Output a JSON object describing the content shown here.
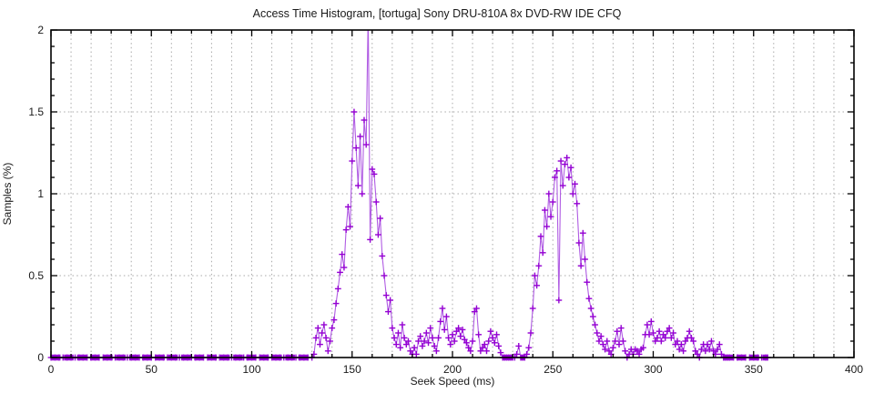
{
  "title": "Access Time Histogram, [tortuga] Sony DRU-810A 8x DVD-RW IDE CFQ",
  "chart_data": {
    "type": "line",
    "title": "Access Time Histogram, [tortuga] Sony DRU-810A 8x DVD-RW IDE CFQ",
    "xlabel": "Seek Speed (ms)",
    "ylabel": "Samples (%)",
    "xlim": [
      0,
      400
    ],
    "ylim": [
      0,
      2
    ],
    "xticks_major": [
      0,
      50,
      100,
      150,
      200,
      250,
      300,
      350,
      400
    ],
    "xtick_labels": [
      "0",
      "50",
      "100",
      "150",
      "200",
      "250",
      "300",
      "350",
      "400"
    ],
    "xtick_minor_step": 10,
    "yticks_major": [
      0,
      0.5,
      1,
      1.5,
      2
    ],
    "ytick_labels": [
      "0",
      "0.5",
      "1",
      "1.5",
      "2"
    ],
    "ytick_minor_step": 0.1,
    "grid": {
      "vertical_step": 10,
      "horizontal_lines": [
        0.5,
        1,
        1.5
      ],
      "style": "dotted"
    },
    "legend": "none",
    "marker": "plus",
    "series": [
      {
        "name": "samples",
        "points": [
          [
            0,
            0
          ],
          [
            2,
            0
          ],
          [
            4,
            0
          ],
          [
            6,
            0
          ],
          [
            8,
            0
          ],
          [
            10,
            0
          ],
          [
            12,
            0
          ],
          [
            14,
            0
          ],
          [
            16,
            0
          ],
          [
            18,
            0
          ],
          [
            20,
            0
          ],
          [
            22,
            0
          ],
          [
            24,
            0
          ],
          [
            26,
            0
          ],
          [
            28,
            0
          ],
          [
            30,
            0
          ],
          [
            32,
            0
          ],
          [
            34,
            0
          ],
          [
            36,
            0
          ],
          [
            38,
            0
          ],
          [
            40,
            0
          ],
          [
            42,
            0
          ],
          [
            44,
            0
          ],
          [
            46,
            0
          ],
          [
            48,
            0
          ],
          [
            50,
            0
          ],
          [
            52,
            0
          ],
          [
            54,
            0
          ],
          [
            56,
            0
          ],
          [
            58,
            0
          ],
          [
            60,
            0
          ],
          [
            62,
            0
          ],
          [
            64,
            0
          ],
          [
            66,
            0
          ],
          [
            68,
            0
          ],
          [
            70,
            0
          ],
          [
            72,
            0
          ],
          [
            74,
            0
          ],
          [
            76,
            0
          ],
          [
            78,
            0
          ],
          [
            80,
            0
          ],
          [
            82,
            0
          ],
          [
            84,
            0
          ],
          [
            86,
            0
          ],
          [
            88,
            0
          ],
          [
            90,
            0
          ],
          [
            92,
            0
          ],
          [
            94,
            0
          ],
          [
            96,
            0
          ],
          [
            98,
            0
          ],
          [
            100,
            0
          ],
          [
            102,
            0
          ],
          [
            104,
            0
          ],
          [
            106,
            0
          ],
          [
            108,
            0
          ],
          [
            110,
            0
          ],
          [
            112,
            0
          ],
          [
            114,
            0
          ],
          [
            116,
            0
          ],
          [
            118,
            0
          ],
          [
            120,
            0
          ],
          [
            122,
            0
          ],
          [
            124,
            0
          ],
          [
            126,
            0
          ],
          [
            128,
            0
          ],
          [
            130,
            0
          ],
          [
            131,
            0.02
          ],
          [
            132,
            0.12
          ],
          [
            133,
            0.18
          ],
          [
            134,
            0.08
          ],
          [
            135,
            0.15
          ],
          [
            136,
            0.2
          ],
          [
            137,
            0.12
          ],
          [
            138,
            0.04
          ],
          [
            139,
            0.1
          ],
          [
            140,
            0.18
          ],
          [
            141,
            0.23
          ],
          [
            142,
            0.33
          ],
          [
            143,
            0.42
          ],
          [
            144,
            0.52
          ],
          [
            145,
            0.63
          ],
          [
            146,
            0.55
          ],
          [
            147,
            0.78
          ],
          [
            148,
            0.92
          ],
          [
            149,
            0.8
          ],
          [
            150,
            1.2
          ],
          [
            151,
            1.5
          ],
          [
            152,
            1.28
          ],
          [
            153,
            1.05
          ],
          [
            154,
            1.35
          ],
          [
            155,
            1.0
          ],
          [
            156,
            1.45
          ],
          [
            157,
            1.3
          ],
          [
            158,
            2.1
          ],
          [
            159,
            0.72
          ],
          [
            160,
            1.15
          ],
          [
            161,
            1.12
          ],
          [
            162,
            0.95
          ],
          [
            163,
            0.75
          ],
          [
            164,
            0.85
          ],
          [
            165,
            0.62
          ],
          [
            166,
            0.5
          ],
          [
            167,
            0.38
          ],
          [
            168,
            0.28
          ],
          [
            169,
            0.35
          ],
          [
            170,
            0.18
          ],
          [
            171,
            0.12
          ],
          [
            172,
            0.08
          ],
          [
            173,
            0.15
          ],
          [
            174,
            0.06
          ],
          [
            175,
            0.2
          ],
          [
            176,
            0.12
          ],
          [
            177,
            0.08
          ],
          [
            178,
            0.1
          ],
          [
            179,
            0.04
          ],
          [
            180,
            0.02
          ],
          [
            181,
            0.06
          ],
          [
            182,
            0.02
          ],
          [
            183,
            0.1
          ],
          [
            184,
            0.13
          ],
          [
            185,
            0.07
          ],
          [
            186,
            0.1
          ],
          [
            187,
            0.15
          ],
          [
            188,
            0.09
          ],
          [
            189,
            0.18
          ],
          [
            190,
            0.12
          ],
          [
            191,
            0.07
          ],
          [
            192,
            0.04
          ],
          [
            193,
            0.12
          ],
          [
            194,
            0.22
          ],
          [
            195,
            0.3
          ],
          [
            196,
            0.17
          ],
          [
            197,
            0.25
          ],
          [
            198,
            0.12
          ],
          [
            199,
            0.08
          ],
          [
            200,
            0.14
          ],
          [
            201,
            0.1
          ],
          [
            202,
            0.16
          ],
          [
            203,
            0.18
          ],
          [
            204,
            0.13
          ],
          [
            205,
            0.17
          ],
          [
            206,
            0.11
          ],
          [
            207,
            0.09
          ],
          [
            208,
            0.06
          ],
          [
            209,
            0.04
          ],
          [
            210,
            0.1
          ],
          [
            211,
            0.28
          ],
          [
            212,
            0.3
          ],
          [
            213,
            0.14
          ],
          [
            214,
            0.04
          ],
          [
            215,
            0.06
          ],
          [
            216,
            0.08
          ],
          [
            217,
            0.04
          ],
          [
            218,
            0.1
          ],
          [
            219,
            0.16
          ],
          [
            220,
            0.12
          ],
          [
            221,
            0.09
          ],
          [
            222,
            0.14
          ],
          [
            223,
            0.07
          ],
          [
            224,
            0.03
          ],
          [
            225,
            0
          ],
          [
            226,
            0
          ],
          [
            227,
            0
          ],
          [
            228,
            0
          ],
          [
            229,
            0
          ],
          [
            230,
            0
          ],
          [
            231,
            0
          ],
          [
            232,
            0.02
          ],
          [
            233,
            0.07
          ],
          [
            234,
            0
          ],
          [
            235,
            0
          ],
          [
            236,
            0
          ],
          [
            237,
            0.02
          ],
          [
            238,
            0.06
          ],
          [
            239,
            0.15
          ],
          [
            240,
            0.3
          ],
          [
            241,
            0.5
          ],
          [
            242,
            0.44
          ],
          [
            243,
            0.56
          ],
          [
            244,
            0.74
          ],
          [
            245,
            0.64
          ],
          [
            246,
            0.9
          ],
          [
            247,
            0.8
          ],
          [
            248,
            1.0
          ],
          [
            249,
            0.86
          ],
          [
            250,
            0.95
          ],
          [
            251,
            1.1
          ],
          [
            252,
            1.14
          ],
          [
            253,
            0.35
          ],
          [
            254,
            1.2
          ],
          [
            255,
            1.05
          ],
          [
            256,
            1.18
          ],
          [
            257,
            1.22
          ],
          [
            258,
            1.1
          ],
          [
            259,
            1.16
          ],
          [
            260,
            1.0
          ],
          [
            261,
            1.06
          ],
          [
            262,
            0.94
          ],
          [
            263,
            0.7
          ],
          [
            264,
            0.56
          ],
          [
            265,
            0.76
          ],
          [
            266,
            0.6
          ],
          [
            267,
            0.46
          ],
          [
            268,
            0.36
          ],
          [
            269,
            0.3
          ],
          [
            270,
            0.25
          ],
          [
            271,
            0.2
          ],
          [
            272,
            0.15
          ],
          [
            273,
            0.1
          ],
          [
            274,
            0.13
          ],
          [
            275,
            0.08
          ],
          [
            276,
            0.05
          ],
          [
            277,
            0.1
          ],
          [
            278,
            0.04
          ],
          [
            279,
            0.02
          ],
          [
            280,
            0.06
          ],
          [
            281,
            0.1
          ],
          [
            282,
            0.16
          ],
          [
            283,
            0.08
          ],
          [
            284,
            0.18
          ],
          [
            285,
            0.1
          ],
          [
            286,
            0.04
          ],
          [
            287,
            0
          ],
          [
            288,
            0.02
          ],
          [
            289,
            0.05
          ],
          [
            290,
            0.02
          ],
          [
            291,
            0.05
          ],
          [
            292,
            0.04
          ],
          [
            293,
            0.02
          ],
          [
            294,
            0.05
          ],
          [
            295,
            0.06
          ],
          [
            296,
            0.14
          ],
          [
            297,
            0.2
          ],
          [
            298,
            0.14
          ],
          [
            299,
            0.22
          ],
          [
            300,
            0.15
          ],
          [
            301,
            0.1
          ],
          [
            302,
            0.12
          ],
          [
            303,
            0.16
          ],
          [
            304,
            0.1
          ],
          [
            305,
            0.14
          ],
          [
            306,
            0.12
          ],
          [
            307,
            0.16
          ],
          [
            308,
            0.18
          ],
          [
            309,
            0.12
          ],
          [
            310,
            0.15
          ],
          [
            311,
            0.08
          ],
          [
            312,
            0.1
          ],
          [
            313,
            0.05
          ],
          [
            314,
            0.08
          ],
          [
            315,
            0.04
          ],
          [
            316,
            0.1
          ],
          [
            317,
            0.12
          ],
          [
            318,
            0.16
          ],
          [
            319,
            0.12
          ],
          [
            320,
            0.1
          ],
          [
            321,
            0.04
          ],
          [
            322,
            0.02
          ],
          [
            323,
            0
          ],
          [
            324,
            0.05
          ],
          [
            325,
            0.08
          ],
          [
            326,
            0.04
          ],
          [
            327,
            0.08
          ],
          [
            328,
            0.05
          ],
          [
            329,
            0.1
          ],
          [
            330,
            0.04
          ],
          [
            331,
            0.02
          ],
          [
            332,
            0.05
          ],
          [
            333,
            0.08
          ],
          [
            334,
            0.02
          ],
          [
            335,
            0
          ],
          [
            336,
            0
          ],
          [
            337,
            0
          ],
          [
            338,
            0
          ],
          [
            340,
            0
          ],
          [
            342,
            0
          ],
          [
            344,
            0
          ],
          [
            346,
            0
          ],
          [
            348,
            0
          ],
          [
            350,
            0
          ],
          [
            352,
            0
          ],
          [
            354,
            0
          ],
          [
            356,
            0
          ],
          [
            357,
            0
          ]
        ]
      }
    ]
  },
  "colors": {
    "series": "#9400d3",
    "series_line": "#b05ce3",
    "grid": "#a8a8a8",
    "axis": "#000000",
    "text": "#1a1a1a",
    "background": "#ffffff"
  }
}
